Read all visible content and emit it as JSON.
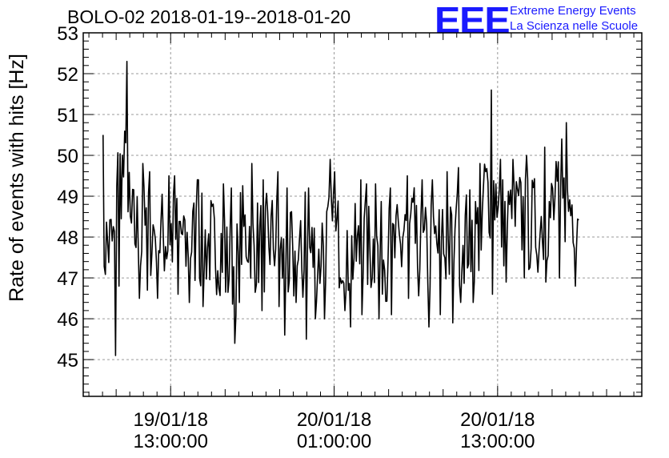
{
  "header": {
    "title": "BOLO-02 2018-01-19--2018-01-20",
    "logo_mark": "EEE",
    "logo_line1": "Extreme Energy Events",
    "logo_line2": "La Scienza nelle Scuole"
  },
  "colors": {
    "logo": "#1a1aff",
    "series": "#000000",
    "grid": "#9a9a9a"
  },
  "chart_data": {
    "type": "line",
    "title": "BOLO-02 2018-01-19--2018-01-20",
    "ylabel": "Rate of events with hits [Hz]",
    "xlabel": "",
    "ylim": [
      44.1,
      53.0
    ],
    "xlim": [
      "2018-01-19 06:35",
      "2018-01-20 23:35"
    ],
    "grid": true,
    "x_tick_labels": [
      {
        "date": "19/01/18",
        "time": "13:00:00"
      },
      {
        "date": "20/01/18",
        "time": "01:00:00"
      },
      {
        "date": "20/01/18",
        "time": "13:00:00"
      }
    ],
    "y_ticks": [
      45,
      46,
      47,
      48,
      49,
      50,
      51,
      52,
      53
    ],
    "series": [
      {
        "x_start": "2018-01-19 08:30",
        "x_end": "2018-01-20 19:10",
        "sampling": "hourly summary (min / max)",
        "x": [
          "2018-01-19 08:30",
          "2018-01-19 09:30",
          "2018-01-19 10:30",
          "2018-01-19 11:30",
          "2018-01-19 12:30",
          "2018-01-19 13:30",
          "2018-01-19 14:30",
          "2018-01-19 15:30",
          "2018-01-19 16:30",
          "2018-01-19 17:30",
          "2018-01-19 18:30",
          "2018-01-19 19:30",
          "2018-01-19 20:30",
          "2018-01-19 21:30",
          "2018-01-19 22:30",
          "2018-01-19 23:30",
          "2018-01-20 00:30",
          "2018-01-20 01:30",
          "2018-01-20 02:30",
          "2018-01-20 03:30",
          "2018-01-20 04:30",
          "2018-01-20 05:30",
          "2018-01-20 06:30",
          "2018-01-20 07:30",
          "2018-01-20 08:30",
          "2018-01-20 09:30",
          "2018-01-20 10:30",
          "2018-01-20 11:30",
          "2018-01-20 12:30",
          "2018-01-20 13:30",
          "2018-01-20 14:30",
          "2018-01-20 15:30",
          "2018-01-20 16:30",
          "2018-01-20 17:30",
          "2018-01-20 18:30"
        ],
        "min": [
          45.1,
          46.8,
          46.5,
          46.7,
          46.5,
          46.6,
          46.4,
          46.3,
          46.3,
          45.4,
          46.4,
          46.2,
          46.3,
          45.6,
          45.5,
          46.0,
          46.0,
          46.2,
          45.8,
          46.1,
          46.0,
          46.1,
          46.5,
          45.8,
          46.1,
          45.9,
          46.4,
          46.4,
          46.6,
          46.9,
          47.0,
          46.6,
          46.9,
          47.0,
          46.8
        ],
        "max": [
          50.5,
          52.3,
          49.8,
          49.6,
          49.5,
          49.5,
          49.4,
          49.4,
          49.3,
          49.2,
          49.8,
          49.4,
          49.6,
          49.2,
          49.1,
          49.2,
          49.9,
          49.6,
          49.4,
          49.3,
          49.3,
          49.2,
          49.5,
          49.4,
          49.4,
          49.6,
          49.7,
          49.8,
          51.6,
          49.9,
          49.9,
          50.0,
          50.2,
          50.4,
          50.8
        ]
      }
    ]
  }
}
